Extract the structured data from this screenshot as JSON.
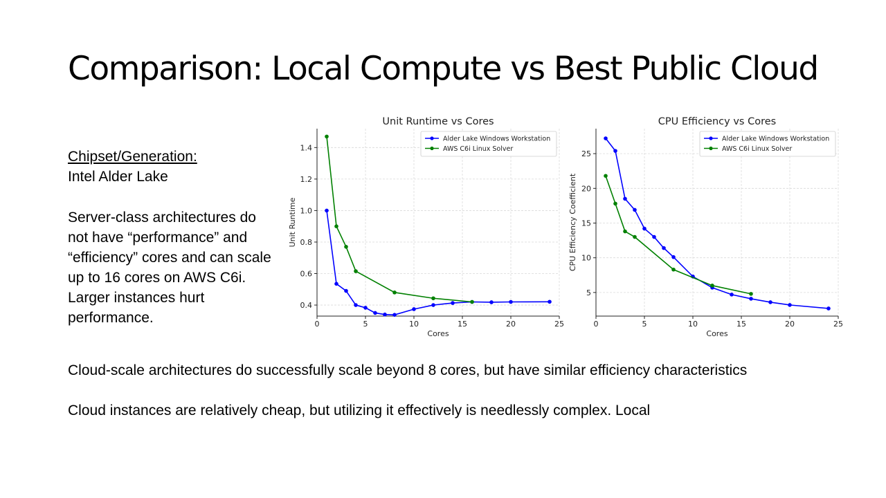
{
  "slide": {
    "title": "Comparison: Local Compute vs Best Public Cloud",
    "chipset_heading": "Chipset/Generation:",
    "chipset_value": "Intel Alder Lake",
    "server_text": "Server-class architectures do not have “performance” and “efficiency” cores and can scale up to 16 cores on AWS C6i.  Larger instances hurt performance.",
    "bottom_line_1": "Cloud-scale architectures do successfully scale beyond 8 cores, but have similar efficiency characteristics",
    "bottom_line_2": "Cloud instances are relatively cheap, but utilizing it effectively is needlessly complex.  Local"
  },
  "chart_data": [
    {
      "type": "line",
      "title": "Unit Runtime vs Cores",
      "xlabel": "Cores",
      "ylabel": "Unit Runtime",
      "xlim": [
        0,
        25
      ],
      "ylim": [
        0.33,
        1.52
      ],
      "xticks": [
        0,
        5,
        10,
        15,
        20,
        25
      ],
      "yticks": [
        0.4,
        0.6,
        0.8,
        1.0,
        1.2,
        1.4
      ],
      "grid": true,
      "legend_position": "top-right",
      "series": [
        {
          "name": "Alder Lake Windows Workstation",
          "color": "#0000ff",
          "x": [
            1,
            2,
            3,
            4,
            5,
            6,
            7,
            8,
            10,
            12,
            14,
            16,
            18,
            20,
            24
          ],
          "y": [
            1.0,
            0.535,
            0.49,
            0.4,
            0.383,
            0.35,
            0.34,
            0.338,
            0.374,
            0.4,
            0.413,
            0.42,
            0.418,
            0.42,
            0.421
          ]
        },
        {
          "name": "AWS C6i Linux Solver",
          "color": "#008000",
          "x": [
            1,
            2,
            3,
            4,
            8,
            12,
            16
          ],
          "y": [
            1.47,
            0.9,
            0.77,
            0.615,
            0.48,
            0.443,
            0.42
          ]
        }
      ]
    },
    {
      "type": "line",
      "title": "CPU Efficiency vs Cores",
      "xlabel": "Cores",
      "ylabel": "CPU Efficiency Coefficient",
      "xlim": [
        0,
        25
      ],
      "ylim": [
        1.6,
        28.6
      ],
      "xticks": [
        0,
        5,
        10,
        15,
        20,
        25
      ],
      "yticks": [
        5,
        10,
        15,
        20,
        25
      ],
      "grid": true,
      "legend_position": "top-right",
      "series": [
        {
          "name": "Alder Lake Windows Workstation",
          "color": "#0000ff",
          "x": [
            1,
            2,
            3,
            4,
            5,
            6,
            7,
            8,
            10,
            12,
            14,
            16,
            18,
            20,
            24
          ],
          "y": [
            27.2,
            25.4,
            18.5,
            16.9,
            14.2,
            13.0,
            11.4,
            10.1,
            7.3,
            5.7,
            4.7,
            4.1,
            3.6,
            3.2,
            2.7
          ]
        },
        {
          "name": "AWS C6i Linux Solver",
          "color": "#008000",
          "x": [
            1,
            2,
            3,
            4,
            8,
            12,
            16
          ],
          "y": [
            21.8,
            17.8,
            13.8,
            13.0,
            8.3,
            6.0,
            4.8
          ]
        }
      ]
    }
  ]
}
